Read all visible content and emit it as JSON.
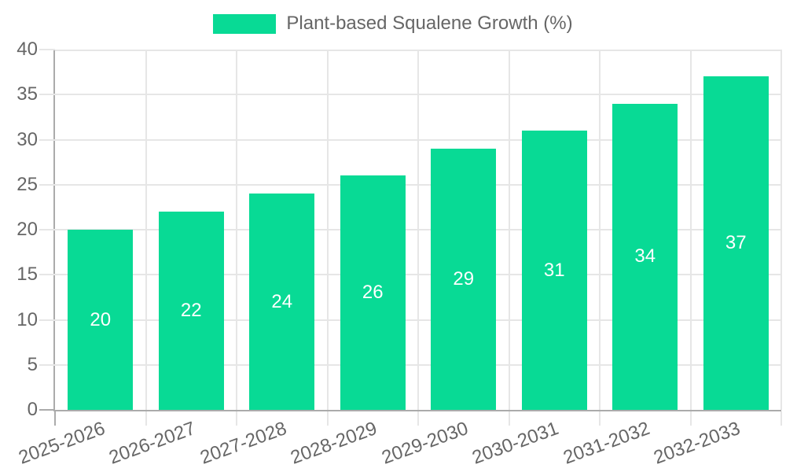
{
  "legend": {
    "label": "Plant-based Squalene Growth (%)"
  },
  "chart_data": {
    "type": "bar",
    "title": "",
    "series_name": "Plant-based Squalene Growth (%)",
    "categories": [
      "2025-2026",
      "2026-2027",
      "2027-2028",
      "2028-2029",
      "2029-2030",
      "2030-2031",
      "2031-2032",
      "2032-2033"
    ],
    "values": [
      20,
      22,
      24,
      26,
      29,
      31,
      34,
      37
    ],
    "xlabel": "",
    "ylabel": "",
    "ylim": [
      0,
      40
    ],
    "yticks": [
      0,
      5,
      10,
      15,
      20,
      25,
      30,
      35,
      40
    ],
    "grid": true,
    "legend_position": "top",
    "x_label_rotation_deg": -20
  },
  "colors": {
    "bar": "#08da95",
    "grid": "#e6e6e6",
    "axis": "#ababab",
    "tick_text": "#666666",
    "value_text": "#ffffff",
    "background": "#ffffff"
  }
}
